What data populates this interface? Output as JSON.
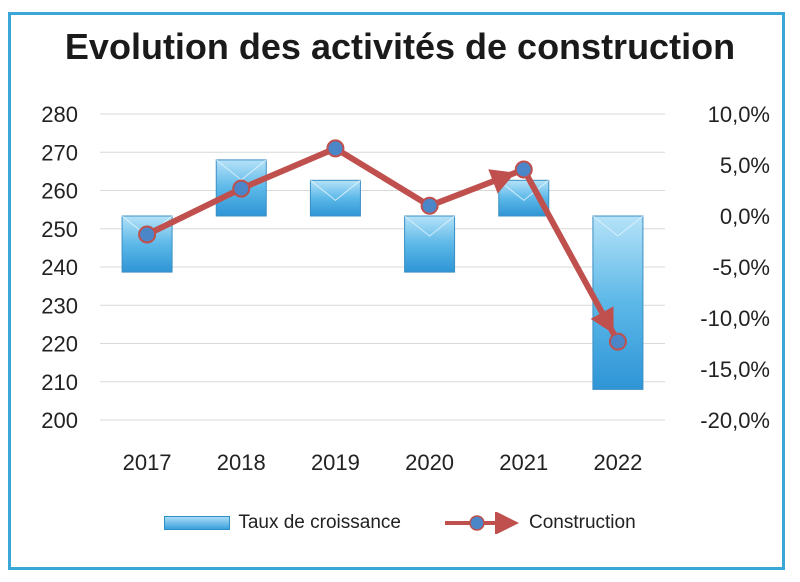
{
  "chart_data": {
    "type": "bar",
    "title": "Evolution des activités de construction",
    "categories": [
      "2017",
      "2018",
      "2019",
      "2020",
      "2021",
      "2022"
    ],
    "series": [
      {
        "name": "Taux de croissance",
        "type": "bar",
        "axis": "right",
        "color": "#3aa1dc",
        "values": [
          -5.5,
          5.5,
          3.5,
          -5.5,
          3.5,
          -17.0
        ]
      },
      {
        "name": "Construction",
        "type": "line",
        "axis": "left",
        "color": "#c0504d",
        "marker_color": "#4a86c8",
        "values": [
          248.5,
          260.5,
          271.0,
          256.0,
          265.5,
          220.5
        ]
      }
    ],
    "y_left": {
      "min": 200,
      "max": 280,
      "step": 10,
      "tick_labels": [
        "200",
        "210",
        "220",
        "230",
        "240",
        "250",
        "260",
        "270",
        "280"
      ]
    },
    "y_right": {
      "min": -20,
      "max": 10,
      "step": 5,
      "tick_labels": [
        "-20,0%",
        "-15,0%",
        "-10,0%",
        "-5,0%",
        "0,0%",
        "5,0%",
        "10,0%"
      ]
    },
    "grid": true,
    "legend_position": "bottom"
  }
}
